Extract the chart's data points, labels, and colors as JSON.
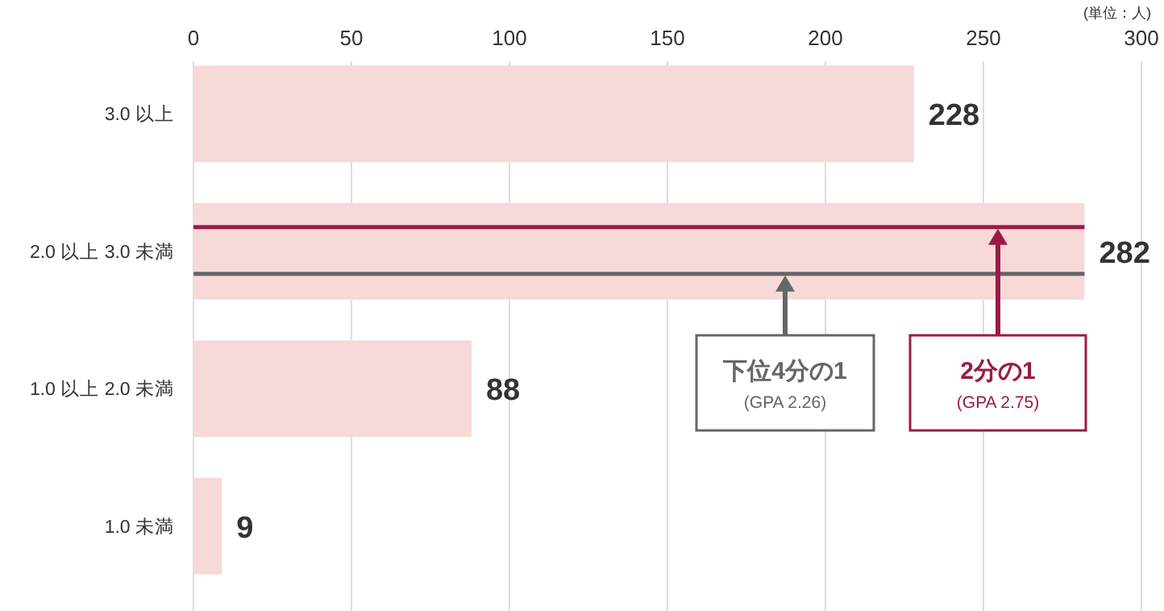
{
  "chart_data": {
    "type": "bar",
    "orientation": "horizontal",
    "categories": [
      "3.0 以上",
      "2.0 以上 3.0 未満",
      "1.0 以上 2.0 未満",
      "1.0 未満"
    ],
    "values": [
      228,
      282,
      88,
      9
    ],
    "color": "#f7d9d9",
    "xlim": [
      0,
      300
    ],
    "xticks": [
      0,
      50,
      100,
      150,
      200,
      250,
      300
    ],
    "grid": "x",
    "data_labels": true,
    "annotations": [
      "(単位：人)"
    ],
    "ref_lines": [
      {
        "axis": "y",
        "value": "2.0 以上 3.0 未満",
        "label": "下位4分の1\n(GPA 2.26)",
        "color": "#666666"
      },
      {
        "axis": "y",
        "value": "2.0 以上 3.0 未満",
        "label": "2分の1\n(GPA 2.75)",
        "color": "#9b1b46"
      }
    ]
  }
}
